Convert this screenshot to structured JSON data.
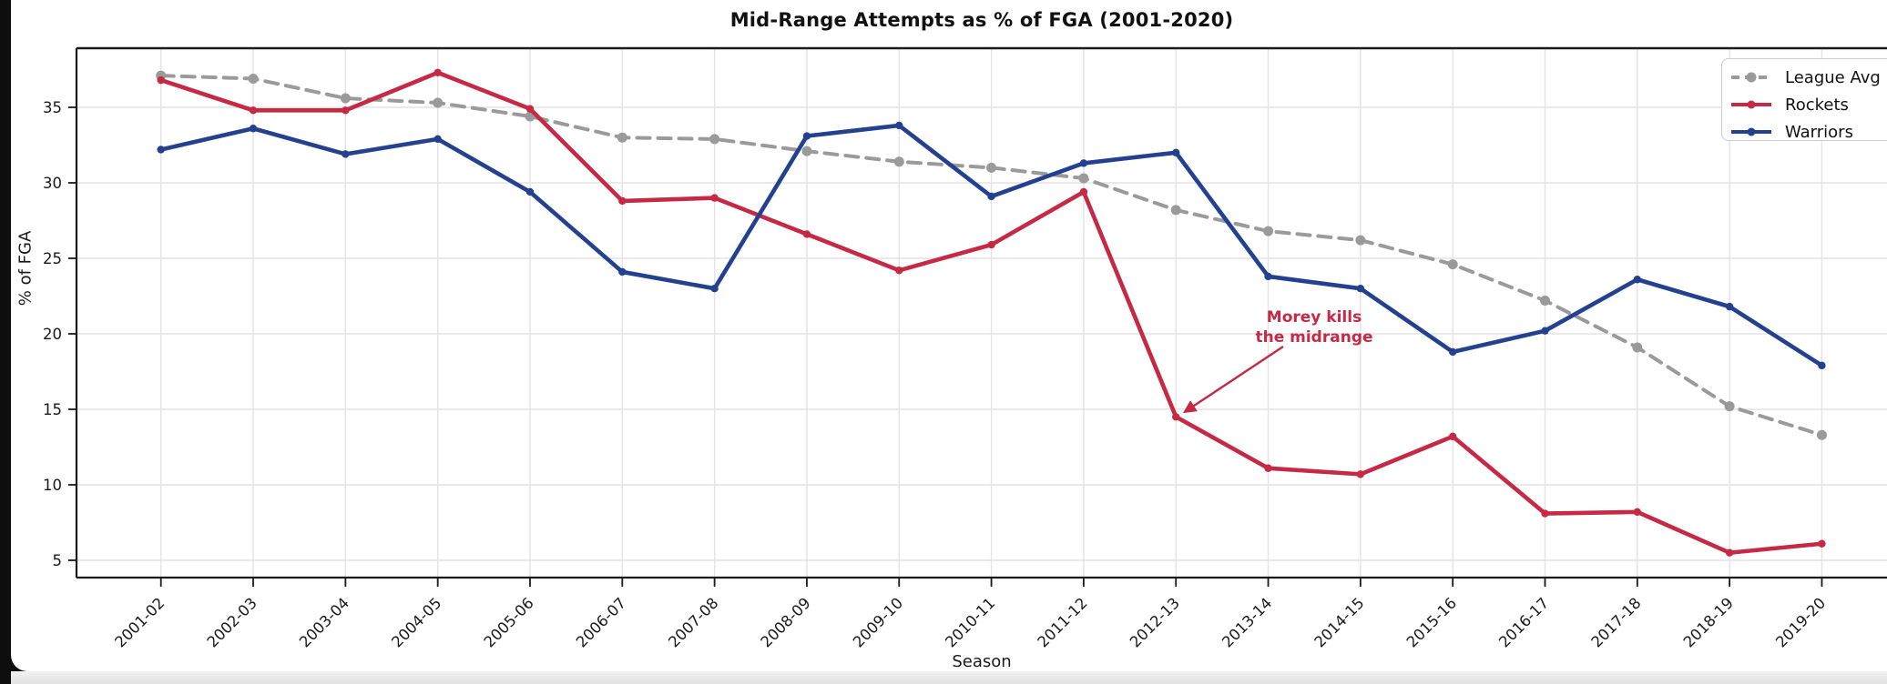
{
  "chart": {
    "title": "Mid-Range Attempts as % of FGA (2001-2020)",
    "xlabel": "Season",
    "ylabel": "% of FGA",
    "annotation": {
      "line1": "Morey kills",
      "line2": "the midrange"
    }
  },
  "legend": {
    "items": [
      {
        "label": "League Avg",
        "color": "#9a9a9a",
        "dashed": true
      },
      {
        "label": "Rockets",
        "color": "#c52944",
        "dashed": false
      },
      {
        "label": "Warriors",
        "color": "#23418f",
        "dashed": false
      }
    ]
  },
  "colors": {
    "rockets_red": "#c52944",
    "warriors_blue": "#23418f",
    "league_gray": "#9a9a9a",
    "gridline": "#e4e4e4",
    "spine": "#1a1a1a",
    "tick_text": "#1a1a1a"
  },
  "chart_data": {
    "type": "line",
    "title": "Mid-Range Attempts as % of FGA (2001-2020)",
    "xlabel": "Season",
    "ylabel": "% of FGA",
    "categories": [
      "2001-02",
      "2002-03",
      "2003-04",
      "2004-05",
      "2005-06",
      "2006-07",
      "2007-08",
      "2008-09",
      "2009-10",
      "2010-11",
      "2011-12",
      "2012-13",
      "2013-14",
      "2014-15",
      "2015-16",
      "2016-17",
      "2017-18",
      "2018-19",
      "2019-20"
    ],
    "series": [
      {
        "name": "League Avg",
        "color": "#9a9a9a",
        "style": "dashed",
        "values": [
          37.1,
          36.9,
          35.6,
          35.3,
          34.4,
          33.0,
          32.9,
          32.1,
          31.4,
          31.0,
          30.3,
          28.2,
          26.8,
          26.2,
          24.6,
          22.2,
          19.1,
          15.2,
          13.3
        ]
      },
      {
        "name": "Rockets",
        "color": "#c52944",
        "style": "solid",
        "values": [
          36.8,
          34.8,
          34.8,
          37.3,
          34.9,
          28.8,
          29.0,
          26.6,
          24.2,
          25.9,
          29.4,
          14.5,
          11.1,
          10.7,
          13.2,
          8.1,
          8.2,
          5.5,
          6.1
        ]
      },
      {
        "name": "Warriors",
        "color": "#23418f",
        "style": "solid",
        "values": [
          32.2,
          33.6,
          31.9,
          32.9,
          29.4,
          24.1,
          23.0,
          33.1,
          33.8,
          29.1,
          31.3,
          32.0,
          23.8,
          23.0,
          18.8,
          20.2,
          23.6,
          21.8,
          17.9
        ]
      }
    ],
    "yticks": [
      5,
      10,
      15,
      20,
      25,
      30,
      35
    ],
    "ylim": [
      3.9,
      38.9
    ],
    "grid": true,
    "legend_position": "upper right",
    "annotation": {
      "text": "Morey kills\nthe midrange",
      "color": "#c52944",
      "target_category": "2012-13",
      "target_series": "Rockets",
      "target_value": 14.5
    }
  }
}
